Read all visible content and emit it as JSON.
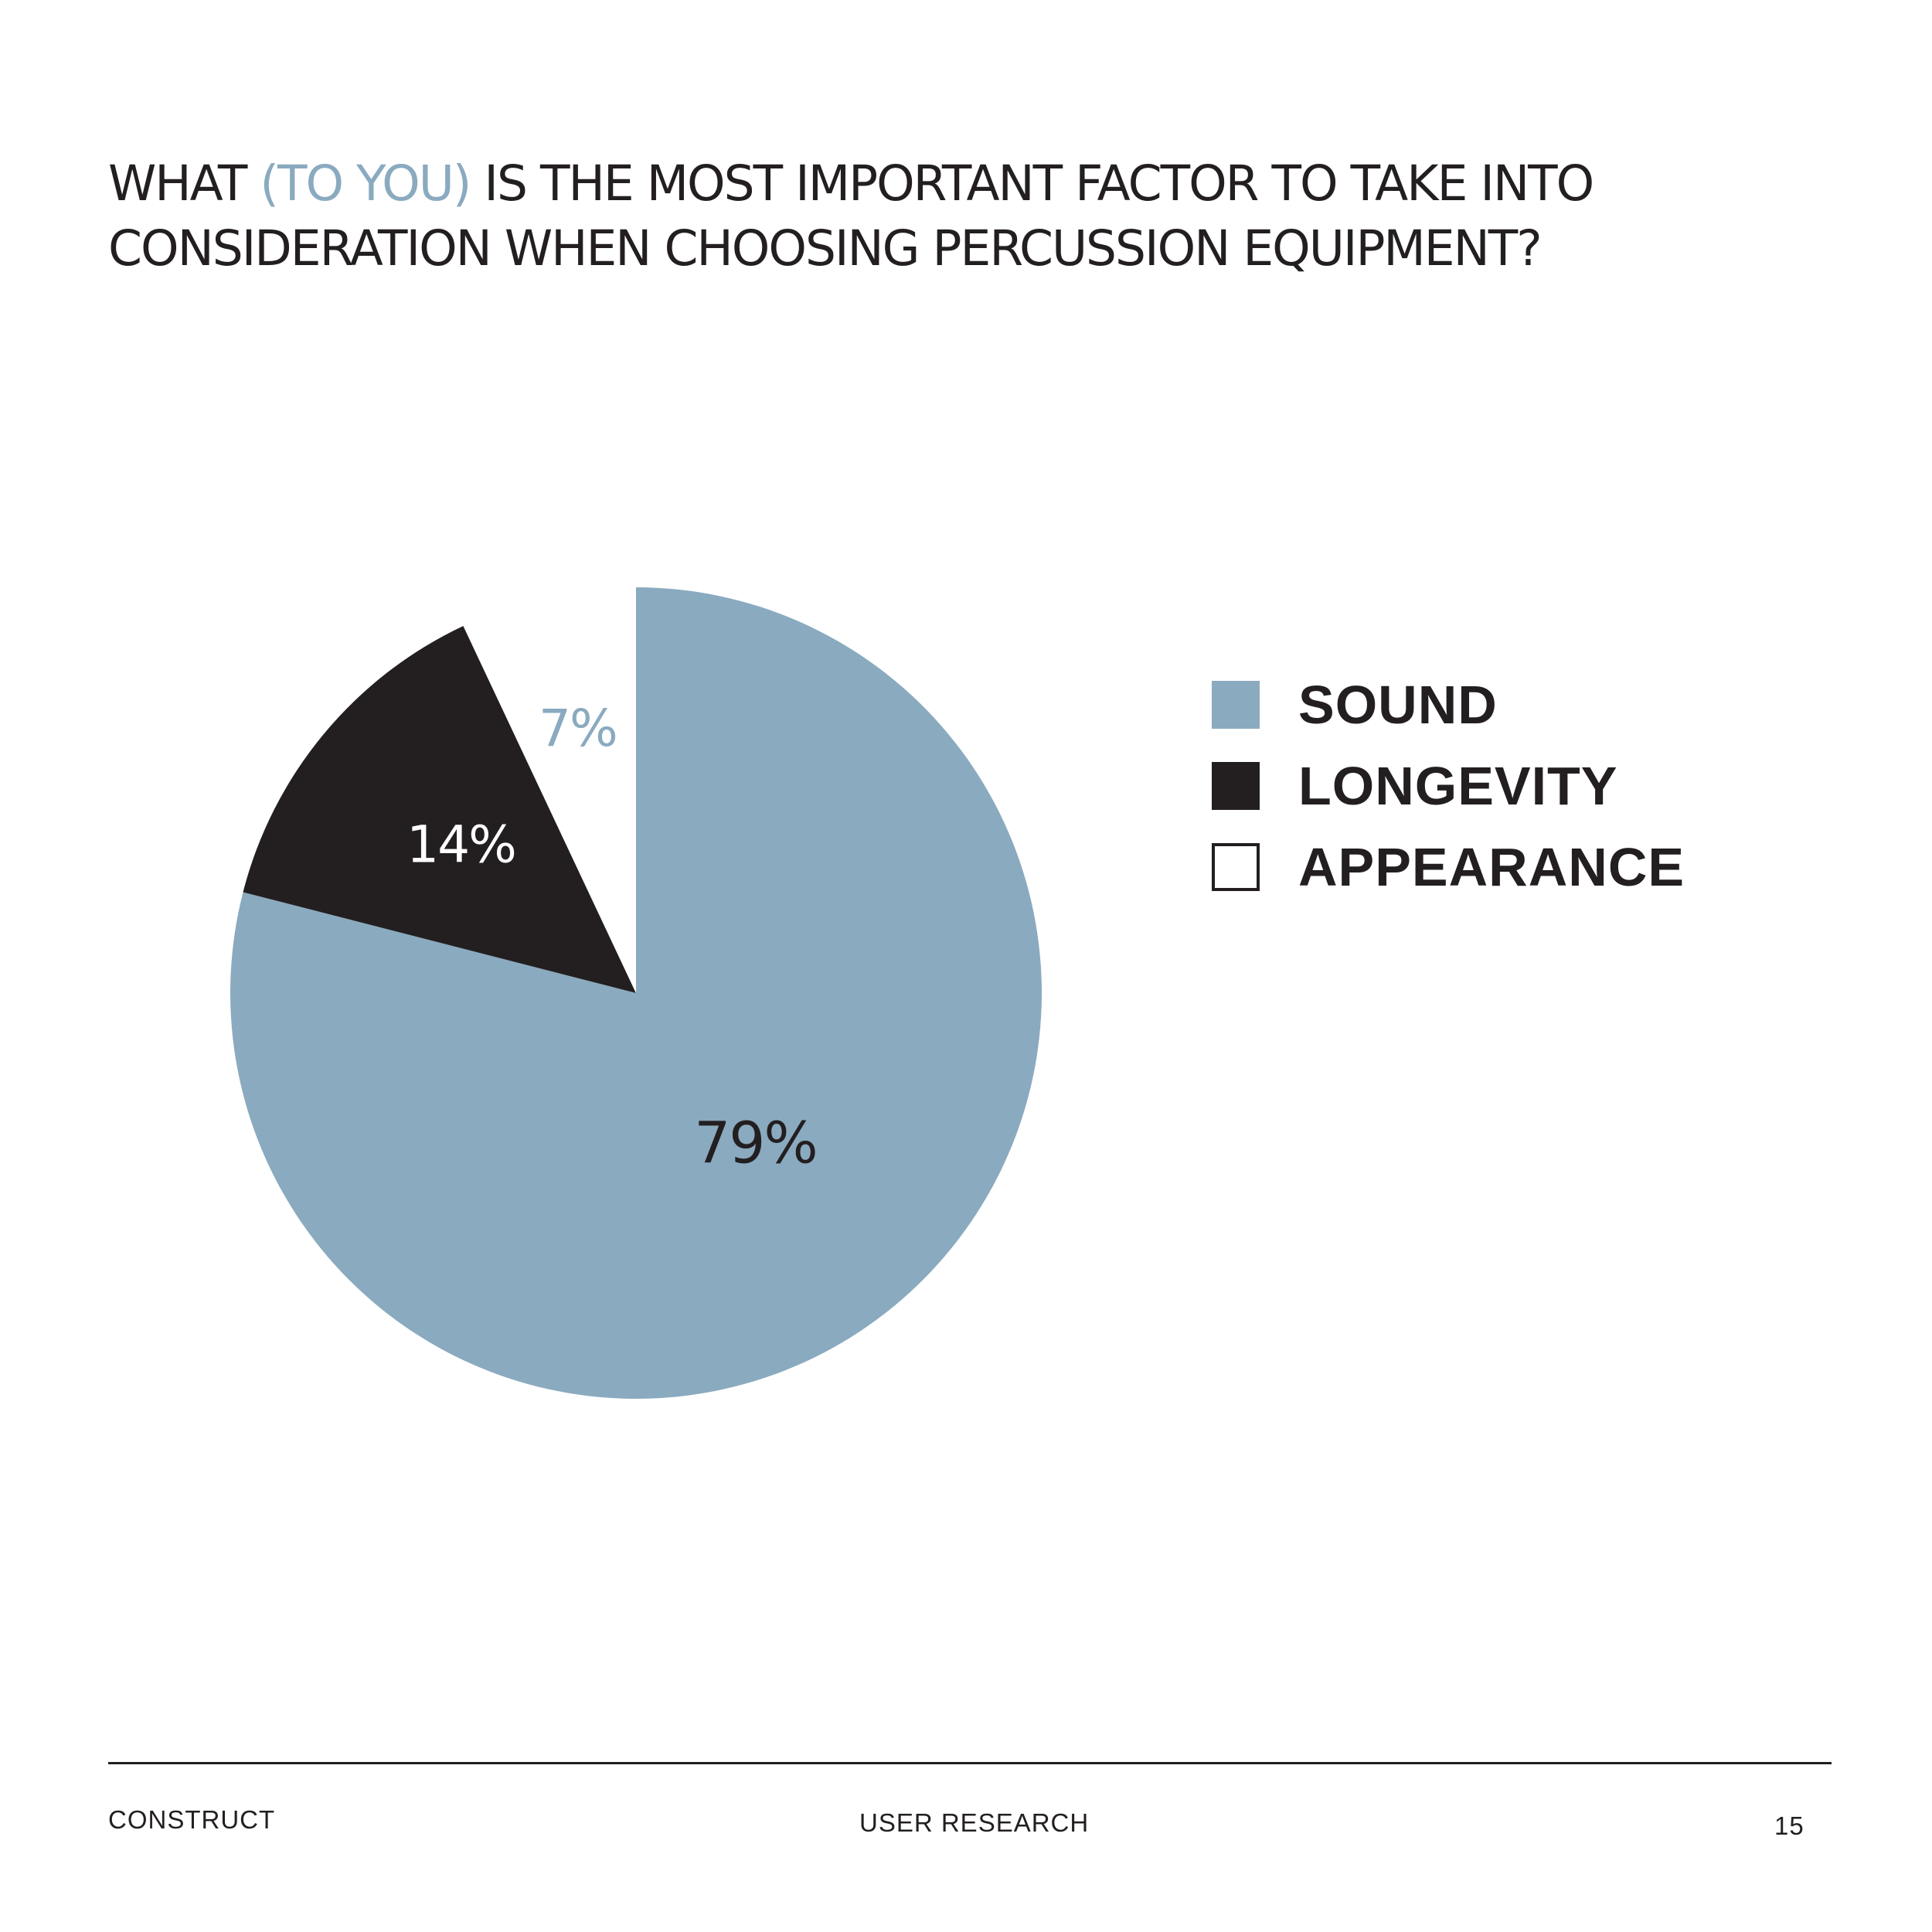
{
  "title": {
    "part1": "WHAT ",
    "highlight": "(TO YOU)",
    "part2": " IS THE MOST IMPORTANT FACTOR TO TAKE INTO",
    "line2": "CONSIDERATION WHEN CHOOSING PERCUSSION EQUIPMENT?"
  },
  "chart_data": {
    "type": "pie",
    "title": "WHAT (TO YOU) IS THE MOST IMPORTANT FACTOR TO TAKE INTO CONSIDERATION WHEN CHOOSING PERCUSSION EQUIPMENT?",
    "categories": [
      "SOUND",
      "LONGEVITY",
      "APPEARANCE"
    ],
    "values": [
      79,
      14,
      7
    ],
    "data_labels": [
      "79%",
      "14%",
      "7%"
    ],
    "colors": [
      "#8aaabf",
      "#231f20",
      "#ffffff"
    ],
    "label_colors": [
      "#231f20",
      "#ffffff",
      "#8aaabf"
    ],
    "legend_position": "right",
    "start_angle": "12 o'clock",
    "direction": "clockwise"
  },
  "footer": {
    "left": "CONSTRUCT",
    "center": "USER RESEARCH",
    "page_number": "15"
  }
}
